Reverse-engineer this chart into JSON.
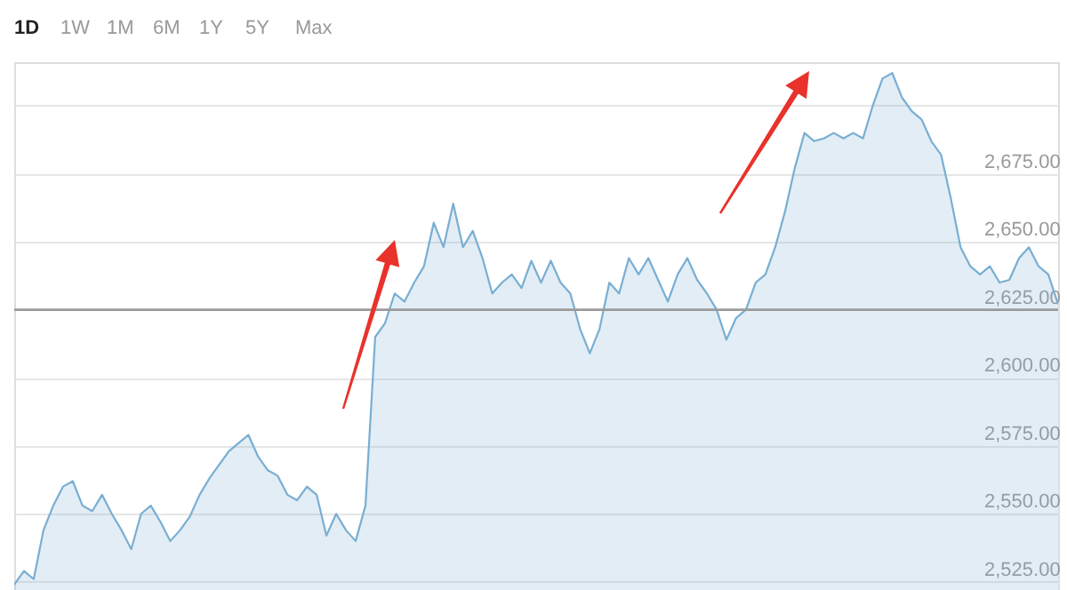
{
  "chart_data": {
    "type": "area",
    "annotations": [
      "1D",
      "1W",
      "1M",
      "6M",
      "1Y",
      "5Y",
      "Max"
    ],
    "categories": [
      null,
      null,
      null,
      null,
      null,
      null,
      null,
      null,
      null,
      null,
      null,
      null,
      null,
      null,
      null,
      null,
      null,
      null,
      null,
      null,
      null,
      null,
      null,
      null,
      null,
      null,
      null,
      null,
      null,
      null,
      null,
      null,
      null,
      null,
      null,
      null,
      null,
      null,
      null,
      null,
      null,
      null,
      null,
      null,
      null,
      null,
      null,
      null,
      null,
      null,
      null,
      null,
      null,
      null,
      null,
      null,
      null,
      null,
      null,
      null,
      null,
      null,
      null,
      null,
      null,
      null,
      null,
      null,
      null,
      null,
      null,
      null,
      null,
      null,
      null,
      null,
      null,
      null,
      null,
      null,
      null,
      null,
      null,
      null,
      null,
      null,
      null,
      null,
      null,
      null,
      null,
      null,
      null,
      null,
      null,
      null,
      null,
      null,
      null,
      null,
      null,
      null,
      null,
      null,
      null,
      null,
      null,
      null
    ],
    "series": [
      {
        "color": "#79aed3",
        "values": [
          2524,
          2529,
          2526,
          2544,
          2553,
          2560,
          2562,
          2553,
          2551,
          2557,
          2550,
          2544,
          2537,
          2550,
          2553,
          2547,
          2540,
          2544,
          2549,
          2557,
          2563,
          2568,
          2573,
          2576,
          2579,
          2571,
          2566,
          2564,
          2557,
          2555,
          2560,
          2557,
          2542,
          2550,
          2544,
          2540,
          2553,
          2615,
          2620,
          2631,
          2628,
          2635,
          2641,
          2657,
          2648,
          2664,
          2648,
          2654,
          2644,
          2631,
          2635,
          2638,
          2633,
          2643,
          2635,
          2643,
          2635,
          2631,
          2618,
          2609,
          2618,
          2635,
          2631,
          2644,
          2638,
          2644,
          2636,
          2628,
          2638,
          2644,
          2636,
          2631,
          2625,
          2614,
          2622,
          2625,
          2635,
          2638,
          2648,
          2661,
          2677,
          2690,
          2687,
          2688,
          2690,
          2688,
          2690,
          2688,
          2700,
          2710,
          2712,
          2703,
          2698,
          2695,
          2687,
          2682,
          2666,
          2648,
          2641,
          2638,
          2641,
          2635,
          2636,
          2644,
          2648,
          2641,
          2638,
          2627
        ]
      }
    ],
    "ylim": [
      2522,
      2716
    ],
    "yticks": [
      {
        "value": 2525,
        "label": "2,525.00"
      },
      {
        "value": 2550,
        "label": "2,550.00"
      },
      {
        "value": 2575,
        "label": "2,575.00"
      },
      {
        "value": 2600,
        "label": "2,600.00"
      },
      {
        "value": 2625,
        "label": "2,625.00"
      },
      {
        "value": 2650,
        "label": "2,650.00"
      },
      {
        "value": 2675,
        "label": "2,675.00"
      },
      {
        "value": 2700,
        "label": null
      }
    ],
    "ref_lines": [
      {
        "axis": "y",
        "value": 2625,
        "color": "#9a9a9a"
      }
    ],
    "grid": "y",
    "tick_labels": "y"
  }
}
